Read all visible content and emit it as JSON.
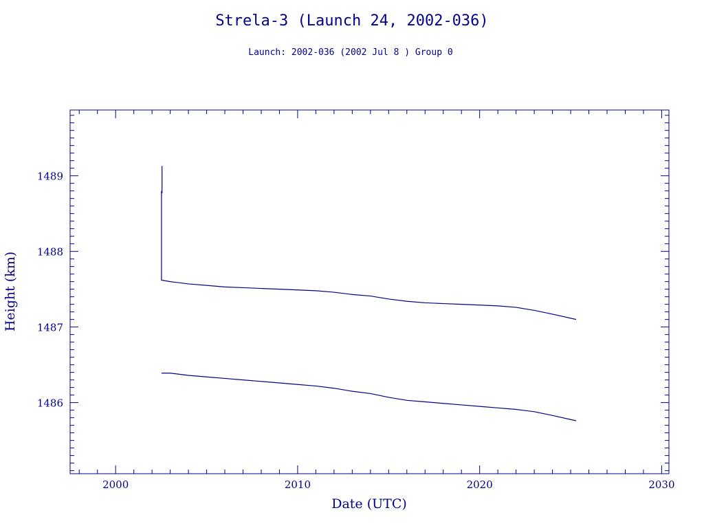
{
  "chart_data": {
    "type": "line",
    "title": "Strela-3 (Launch 24, 2002-036)",
    "subtitle": "Launch: 2002-036  (2002 Jul  8 )  Group 0",
    "xlabel": "Date (UTC)",
    "ylabel": "Height (km)",
    "xlim": [
      1997.5,
      2030.4
    ],
    "ylim": [
      1485.06,
      1489.87
    ],
    "x_ticks": [
      2000,
      2010,
      2020,
      2030
    ],
    "y_ticks": [
      1486,
      1487,
      1488,
      1489
    ],
    "grid": false,
    "legend": "none",
    "colors": {
      "line": "#00008b",
      "text": "#00008b",
      "background": "#ffffff"
    },
    "series": [
      {
        "values": [
          [
            2002.52,
            1488.8
          ],
          [
            2002.52,
            1487.62
          ],
          [
            2003,
            1487.6
          ],
          [
            2004,
            1487.57
          ],
          [
            2005,
            1487.55
          ],
          [
            2006,
            1487.53
          ],
          [
            2007,
            1487.52
          ],
          [
            2008,
            1487.51
          ],
          [
            2009,
            1487.5
          ],
          [
            2010,
            1487.49
          ],
          [
            2011,
            1487.48
          ],
          [
            2012,
            1487.46
          ],
          [
            2013,
            1487.43
          ],
          [
            2014,
            1487.41
          ],
          [
            2015,
            1487.37
          ],
          [
            2016,
            1487.34
          ],
          [
            2017,
            1487.32
          ],
          [
            2018,
            1487.31
          ],
          [
            2019,
            1487.3
          ],
          [
            2020,
            1487.29
          ],
          [
            2021,
            1487.28
          ],
          [
            2022,
            1487.26
          ],
          [
            2023,
            1487.22
          ],
          [
            2024,
            1487.17
          ],
          [
            2025.3,
            1487.1
          ]
        ]
      },
      {
        "values": [
          [
            2002.52,
            1486.39
          ],
          [
            2003,
            1486.39
          ],
          [
            2004,
            1486.36
          ],
          [
            2005,
            1486.34
          ],
          [
            2006,
            1486.32
          ],
          [
            2007,
            1486.3
          ],
          [
            2008,
            1486.28
          ],
          [
            2009,
            1486.26
          ],
          [
            2010,
            1486.24
          ],
          [
            2011,
            1486.22
          ],
          [
            2012,
            1486.19
          ],
          [
            2013,
            1486.15
          ],
          [
            2014,
            1486.12
          ],
          [
            2015,
            1486.07
          ],
          [
            2016,
            1486.03
          ],
          [
            2017,
            1486.01
          ],
          [
            2018,
            1485.99
          ],
          [
            2019,
            1485.97
          ],
          [
            2020,
            1485.95
          ],
          [
            2021,
            1485.93
          ],
          [
            2022,
            1485.91
          ],
          [
            2023,
            1485.88
          ],
          [
            2024,
            1485.83
          ],
          [
            2025.3,
            1485.76
          ]
        ]
      },
      {
        "values": [
          [
            2002.55,
            1489.13
          ],
          [
            2002.55,
            1488.77
          ]
        ]
      }
    ]
  }
}
